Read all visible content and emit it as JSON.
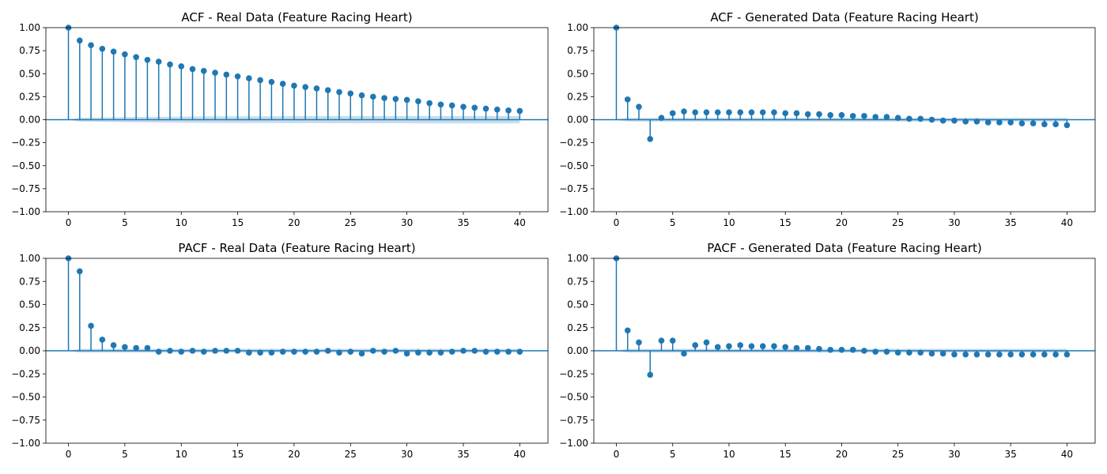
{
  "chart_data": [
    {
      "type": "stem",
      "title": "ACF - Real Data (Feature Racing Heart)",
      "xlim": [
        -2,
        42.5
      ],
      "ylim": [
        -1.0,
        1.0
      ],
      "xticks": [
        "0",
        "5",
        "10",
        "15",
        "20",
        "25",
        "30",
        "35",
        "40"
      ],
      "yticks": [
        "−1.00",
        "−0.75",
        "−0.50",
        "−0.25",
        "0.00",
        "0.25",
        "0.50",
        "0.75",
        "1.00"
      ],
      "x": [
        0,
        1,
        2,
        3,
        4,
        5,
        6,
        7,
        8,
        9,
        10,
        11,
        12,
        13,
        14,
        15,
        16,
        17,
        18,
        19,
        20,
        21,
        22,
        23,
        24,
        25,
        26,
        27,
        28,
        29,
        30,
        31,
        32,
        33,
        34,
        35,
        36,
        37,
        38,
        39,
        40
      ],
      "values": [
        1.0,
        0.86,
        0.81,
        0.77,
        0.74,
        0.71,
        0.68,
        0.65,
        0.63,
        0.6,
        0.58,
        0.55,
        0.53,
        0.51,
        0.49,
        0.47,
        0.45,
        0.43,
        0.41,
        0.39,
        0.37,
        0.355,
        0.34,
        0.32,
        0.3,
        0.285,
        0.265,
        0.25,
        0.235,
        0.225,
        0.215,
        0.2,
        0.18,
        0.165,
        0.155,
        0.14,
        0.13,
        0.12,
        0.11,
        0.1,
        0.095
      ],
      "confint": [
        0.0,
        0.02,
        0.022,
        0.024,
        0.026,
        0.028,
        0.029,
        0.03,
        0.031,
        0.032,
        0.033,
        0.034,
        0.035,
        0.035,
        0.036,
        0.036,
        0.037,
        0.037,
        0.037,
        0.038,
        0.038,
        0.038,
        0.038,
        0.039,
        0.039,
        0.039,
        0.039,
        0.039,
        0.039,
        0.039,
        0.039,
        0.04,
        0.04,
        0.04,
        0.04,
        0.04,
        0.04,
        0.04,
        0.04,
        0.04,
        0.04
      ]
    },
    {
      "type": "stem",
      "title": "ACF - Generated Data (Feature Racing Heart)",
      "xlim": [
        -2,
        42.5
      ],
      "ylim": [
        -1.0,
        1.0
      ],
      "xticks": [
        "0",
        "5",
        "10",
        "15",
        "20",
        "25",
        "30",
        "35",
        "40"
      ],
      "yticks": [
        "−1.00",
        "−0.75",
        "−0.50",
        "−0.25",
        "0.00",
        "0.25",
        "0.50",
        "0.75",
        "1.00"
      ],
      "x": [
        0,
        1,
        2,
        3,
        4,
        5,
        6,
        7,
        8,
        9,
        10,
        11,
        12,
        13,
        14,
        15,
        16,
        17,
        18,
        19,
        20,
        21,
        22,
        23,
        24,
        25,
        26,
        27,
        28,
        29,
        30,
        31,
        32,
        33,
        34,
        35,
        36,
        37,
        38,
        39,
        40
      ],
      "values": [
        1.0,
        0.22,
        0.14,
        -0.21,
        0.02,
        0.07,
        0.09,
        0.08,
        0.08,
        0.08,
        0.08,
        0.08,
        0.08,
        0.08,
        0.08,
        0.07,
        0.07,
        0.06,
        0.06,
        0.05,
        0.05,
        0.04,
        0.04,
        0.03,
        0.03,
        0.02,
        0.01,
        0.01,
        0.0,
        -0.01,
        -0.01,
        -0.02,
        -0.02,
        -0.03,
        -0.03,
        -0.03,
        -0.04,
        -0.04,
        -0.05,
        -0.05,
        -0.06
      ],
      "confint": [
        0.0,
        0.02,
        0.02,
        0.02,
        0.02,
        0.02,
        0.02,
        0.02,
        0.02,
        0.02,
        0.02,
        0.02,
        0.02,
        0.02,
        0.02,
        0.02,
        0.02,
        0.02,
        0.02,
        0.02,
        0.02,
        0.02,
        0.02,
        0.02,
        0.02,
        0.02,
        0.02,
        0.02,
        0.02,
        0.02,
        0.02,
        0.02,
        0.02,
        0.02,
        0.02,
        0.02,
        0.02,
        0.02,
        0.02,
        0.02,
        0.02
      ]
    },
    {
      "type": "stem",
      "title": "PACF - Real Data (Feature Racing Heart)",
      "xlim": [
        -2,
        42.5
      ],
      "ylim": [
        -1.0,
        1.0
      ],
      "xticks": [
        "0",
        "5",
        "10",
        "15",
        "20",
        "25",
        "30",
        "35",
        "40"
      ],
      "yticks": [
        "−1.00",
        "−0.75",
        "−0.50",
        "−0.25",
        "0.00",
        "0.25",
        "0.50",
        "0.75",
        "1.00"
      ],
      "x": [
        0,
        1,
        2,
        3,
        4,
        5,
        6,
        7,
        8,
        9,
        10,
        11,
        12,
        13,
        14,
        15,
        16,
        17,
        18,
        19,
        20,
        21,
        22,
        23,
        24,
        25,
        26,
        27,
        28,
        29,
        30,
        31,
        32,
        33,
        34,
        35,
        36,
        37,
        38,
        39,
        40
      ],
      "values": [
        1.0,
        0.86,
        0.27,
        0.12,
        0.06,
        0.04,
        0.03,
        0.03,
        -0.01,
        0.0,
        -0.01,
        0.0,
        -0.01,
        0.0,
        0.0,
        0.0,
        -0.02,
        -0.02,
        -0.02,
        -0.01,
        -0.01,
        -0.01,
        -0.01,
        0.0,
        -0.02,
        -0.01,
        -0.03,
        0.0,
        -0.01,
        0.0,
        -0.03,
        -0.02,
        -0.02,
        -0.02,
        -0.01,
        0.0,
        0.0,
        -0.01,
        -0.01,
        -0.01,
        -0.01
      ],
      "confint": [
        0.0,
        0.02,
        0.02,
        0.02,
        0.02,
        0.02,
        0.02,
        0.02,
        0.02,
        0.02,
        0.02,
        0.02,
        0.02,
        0.02,
        0.02,
        0.02,
        0.02,
        0.02,
        0.02,
        0.02,
        0.02,
        0.02,
        0.02,
        0.02,
        0.02,
        0.02,
        0.02,
        0.02,
        0.02,
        0.02,
        0.02,
        0.02,
        0.02,
        0.02,
        0.02,
        0.02,
        0.02,
        0.02,
        0.02,
        0.02,
        0.02
      ]
    },
    {
      "type": "stem",
      "title": "PACF - Generated Data (Feature Racing Heart)",
      "xlim": [
        -2,
        42.5
      ],
      "ylim": [
        -1.0,
        1.0
      ],
      "xticks": [
        "0",
        "5",
        "10",
        "15",
        "20",
        "25",
        "30",
        "35",
        "40"
      ],
      "yticks": [
        "−1.00",
        "−0.75",
        "−0.50",
        "−0.25",
        "0.00",
        "0.25",
        "0.50",
        "0.75",
        "1.00"
      ],
      "x": [
        0,
        1,
        2,
        3,
        4,
        5,
        6,
        7,
        8,
        9,
        10,
        11,
        12,
        13,
        14,
        15,
        16,
        17,
        18,
        19,
        20,
        21,
        22,
        23,
        24,
        25,
        26,
        27,
        28,
        29,
        30,
        31,
        32,
        33,
        34,
        35,
        36,
        37,
        38,
        39,
        40
      ],
      "values": [
        1.0,
        0.22,
        0.09,
        -0.26,
        0.11,
        0.11,
        -0.03,
        0.06,
        0.09,
        0.04,
        0.05,
        0.06,
        0.05,
        0.05,
        0.05,
        0.04,
        0.03,
        0.03,
        0.02,
        0.01,
        0.01,
        0.01,
        0.0,
        -0.01,
        -0.01,
        -0.02,
        -0.02,
        -0.02,
        -0.03,
        -0.03,
        -0.04,
        -0.04,
        -0.04,
        -0.04,
        -0.04,
        -0.04,
        -0.04,
        -0.04,
        -0.04,
        -0.04,
        -0.04
      ],
      "confint": [
        0.0,
        0.02,
        0.02,
        0.02,
        0.02,
        0.02,
        0.02,
        0.02,
        0.02,
        0.02,
        0.02,
        0.02,
        0.02,
        0.02,
        0.02,
        0.02,
        0.02,
        0.02,
        0.02,
        0.02,
        0.02,
        0.02,
        0.02,
        0.02,
        0.02,
        0.02,
        0.02,
        0.02,
        0.02,
        0.02,
        0.02,
        0.02,
        0.02,
        0.02,
        0.02,
        0.02,
        0.02,
        0.02,
        0.02,
        0.02,
        0.02
      ]
    }
  ],
  "colors": {
    "series": "#1f77b4",
    "confidence_band": "#1f77b4",
    "axes": "#000000"
  }
}
